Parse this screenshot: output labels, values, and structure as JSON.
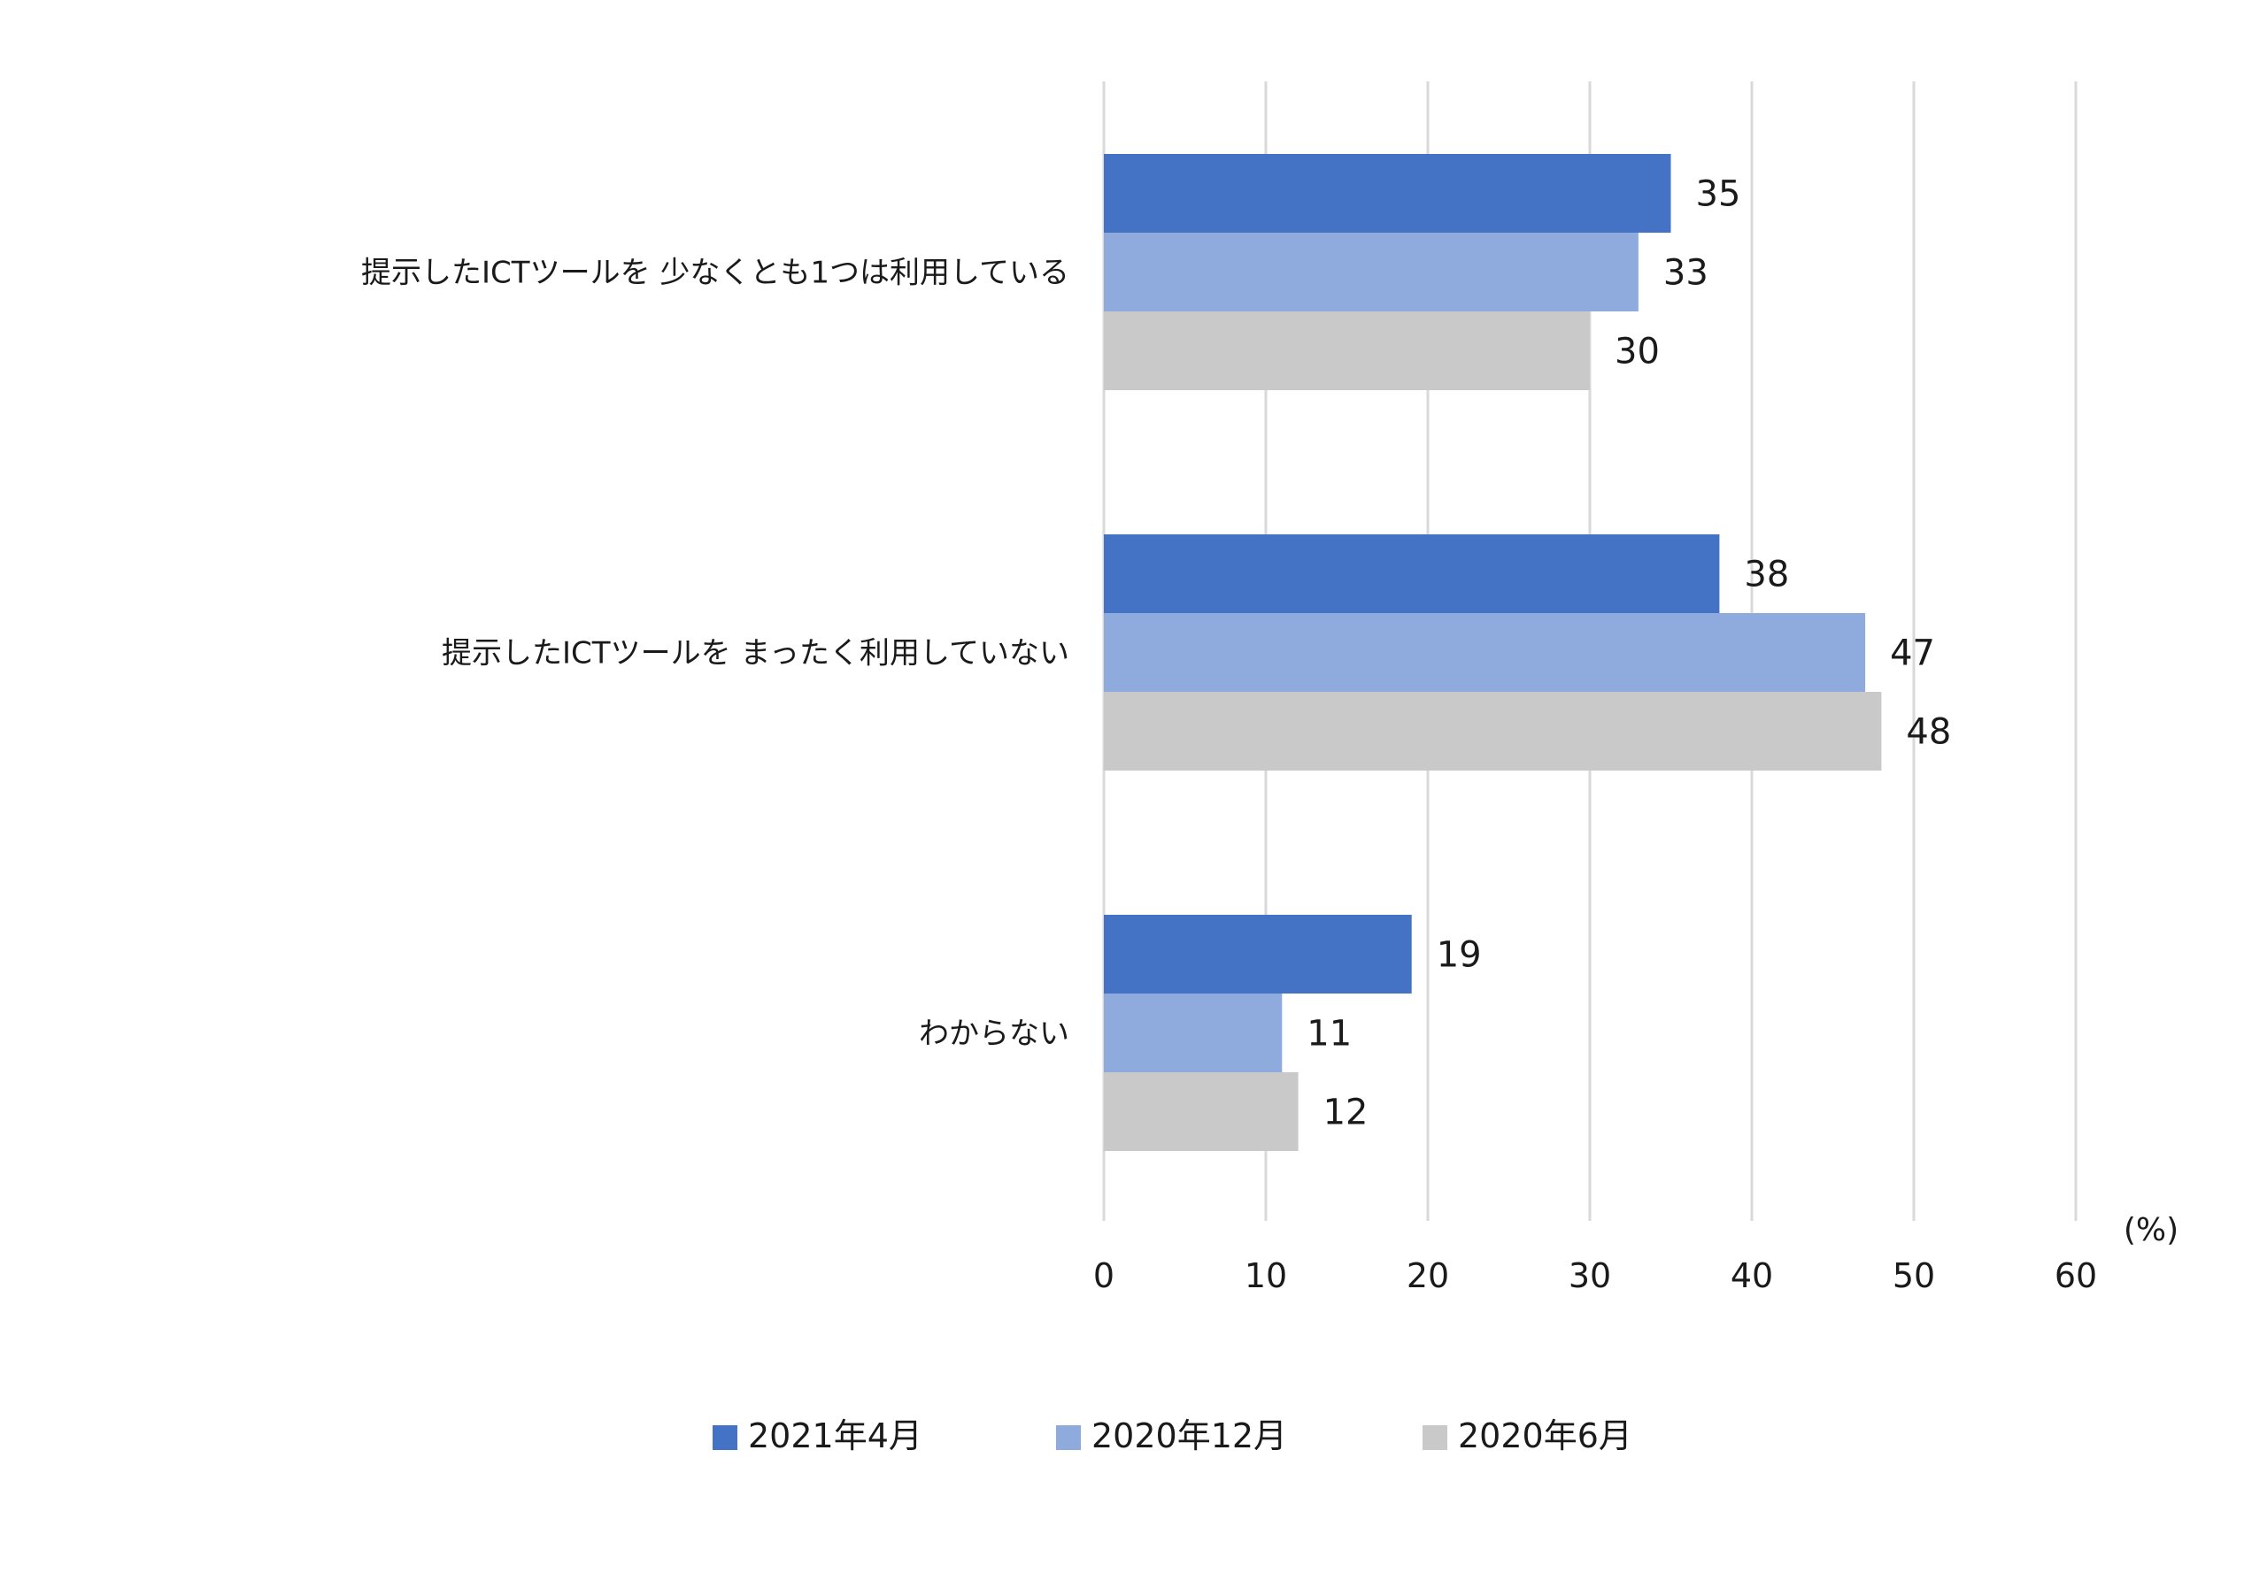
{
  "chart_data": {
    "type": "bar",
    "orientation": "horizontal",
    "categories": [
      "提示したICTツールを 少なくとも1つは利用している",
      "提示したICTツールを まったく利用していない",
      "わからない"
    ],
    "series": [
      {
        "name": "2021年4月",
        "color": "#4472c4",
        "values": [
          35,
          38,
          19
        ]
      },
      {
        "name": "2020年12月",
        "color": "#8faadc",
        "values": [
          33,
          47,
          11
        ]
      },
      {
        "name": "2020年6月",
        "color": "#c9c9c9",
        "values": [
          30,
          48,
          12
        ]
      }
    ],
    "data_labels": [
      [
        "35",
        "38",
        "19"
      ],
      [
        "33",
        "47",
        "11"
      ],
      [
        "30",
        "48",
        "12"
      ]
    ],
    "xlim": [
      0,
      60
    ],
    "xticks": [
      0,
      10,
      20,
      30,
      40,
      50,
      60
    ],
    "xtick_labels": [
      "0",
      "10",
      "20",
      "30",
      "40",
      "50",
      "60"
    ],
    "unit_label": "(%)",
    "grid": true,
    "legend": "bottom"
  }
}
